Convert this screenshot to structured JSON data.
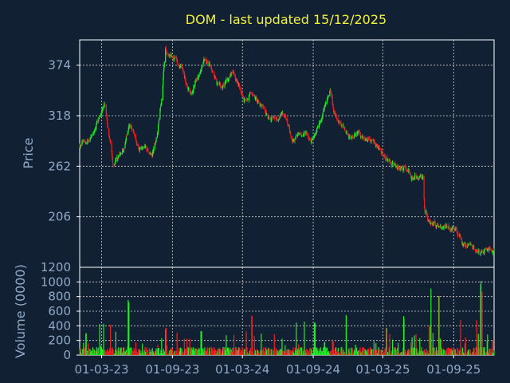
{
  "chart_data": [
    {
      "type": "candlestick",
      "title": "DOM - last updated 15/12/2025",
      "ylabel": "Price",
      "ylim": [
        150,
        402
      ],
      "yticks": [
        "206",
        "262",
        "318",
        "374"
      ],
      "xticks": [
        "01-03-23",
        "01-09-23",
        "01-03-24",
        "01-09-24",
        "01-03-25",
        "01-09-25"
      ],
      "xtick_dates": [
        "2023-03-01",
        "2023-09-01",
        "2024-03-01",
        "2024-09-01",
        "2025-03-01",
        "2025-09-01"
      ],
      "xlim": [
        "2023-01-03",
        "2025-12-15"
      ],
      "grid": true,
      "colors": {
        "up": "#22ee22",
        "down": "#ee2222",
        "grid": "#d0d0d0",
        "background": "#122033",
        "title": "#f2f23a",
        "axis_text": "#8fa9c6"
      },
      "price_path": [
        [
          "2023-01-03",
          286
        ],
        [
          "2023-01-20",
          290
        ],
        [
          "2023-02-05",
          296
        ],
        [
          "2023-02-20",
          310
        ],
        [
          "2023-03-08",
          332
        ],
        [
          "2023-03-20",
          295
        ],
        [
          "2023-04-01",
          262
        ],
        [
          "2023-04-15",
          270
        ],
        [
          "2023-05-01",
          285
        ],
        [
          "2023-05-12",
          305
        ],
        [
          "2023-05-25",
          298
        ],
        [
          "2023-06-10",
          282
        ],
        [
          "2023-06-25",
          280
        ],
        [
          "2023-07-10",
          272
        ],
        [
          "2023-07-25",
          300
        ],
        [
          "2023-08-05",
          340
        ],
        [
          "2023-08-10",
          372
        ],
        [
          "2023-08-14",
          392
        ],
        [
          "2023-08-22",
          385
        ],
        [
          "2023-09-10",
          380
        ],
        [
          "2023-09-25",
          372
        ],
        [
          "2023-10-08",
          352
        ],
        [
          "2023-10-22",
          345
        ],
        [
          "2023-11-10",
          365
        ],
        [
          "2023-11-25",
          382
        ],
        [
          "2023-12-10",
          372
        ],
        [
          "2023-12-25",
          352
        ],
        [
          "2024-01-10",
          350
        ],
        [
          "2024-01-25",
          356
        ],
        [
          "2024-02-08",
          365
        ],
        [
          "2024-02-20",
          348
        ],
        [
          "2024-03-05",
          336
        ],
        [
          "2024-03-20",
          343
        ],
        [
          "2024-04-05",
          336
        ],
        [
          "2024-04-20",
          328
        ],
        [
          "2024-05-05",
          318
        ],
        [
          "2024-05-25",
          314
        ],
        [
          "2024-06-10",
          322
        ],
        [
          "2024-06-25",
          311
        ],
        [
          "2024-07-10",
          290
        ],
        [
          "2024-07-25",
          297
        ],
        [
          "2024-08-10",
          301
        ],
        [
          "2024-08-25",
          292
        ],
        [
          "2024-09-10",
          302
        ],
        [
          "2024-09-25",
          318
        ],
        [
          "2024-10-05",
          335
        ],
        [
          "2024-10-15",
          345
        ],
        [
          "2024-10-25",
          322
        ],
        [
          "2024-11-05",
          310
        ],
        [
          "2024-11-20",
          305
        ],
        [
          "2024-12-05",
          293
        ],
        [
          "2024-12-25",
          296
        ],
        [
          "2025-01-15",
          293
        ],
        [
          "2025-02-05",
          288
        ],
        [
          "2025-02-25",
          280
        ],
        [
          "2025-03-15",
          268
        ],
        [
          "2025-04-05",
          262
        ],
        [
          "2025-04-25",
          258
        ],
        [
          "2025-05-15",
          252
        ],
        [
          "2025-06-01",
          250
        ],
        [
          "2025-06-14",
          246
        ],
        [
          "2025-06-17",
          212
        ],
        [
          "2025-07-01",
          202
        ],
        [
          "2025-07-20",
          198
        ],
        [
          "2025-08-05",
          194
        ],
        [
          "2025-08-20",
          195
        ],
        [
          "2025-09-10",
          192
        ],
        [
          "2025-09-25",
          178
        ],
        [
          "2025-10-15",
          170
        ],
        [
          "2025-11-10",
          168
        ],
        [
          "2025-12-15",
          172
        ]
      ]
    },
    {
      "type": "bar",
      "ylabel": "Volume (0000)",
      "ylim": [
        0,
        1200
      ],
      "yticks": [
        "0",
        "200",
        "400",
        "600",
        "800",
        "1000"
      ],
      "typical_volume": 60,
      "spikes": [
        [
          "2023-01-20",
          320
        ],
        [
          "2023-02-25",
          470
        ],
        [
          "2023-03-05",
          450
        ],
        [
          "2023-03-25",
          420
        ],
        [
          "2023-05-10",
          760
        ],
        [
          "2023-08-15",
          380
        ],
        [
          "2023-11-15",
          340
        ],
        [
          "2024-01-20",
          300
        ],
        [
          "2024-03-10",
          330
        ],
        [
          "2024-03-25",
          540
        ],
        [
          "2024-07-20",
          460
        ],
        [
          "2024-08-10",
          500
        ],
        [
          "2024-09-05",
          480
        ],
        [
          "2024-11-25",
          590
        ],
        [
          "2025-03-10",
          380
        ],
        [
          "2025-04-25",
          540
        ],
        [
          "2025-05-25",
          300
        ],
        [
          "2025-07-01",
          420
        ],
        [
          "2025-07-05",
          960
        ],
        [
          "2025-07-25",
          830
        ],
        [
          "2025-09-20",
          520
        ],
        [
          "2025-11-01",
          500
        ],
        [
          "2025-11-10",
          1040
        ],
        [
          "2025-11-15",
          930
        ]
      ]
    }
  ]
}
